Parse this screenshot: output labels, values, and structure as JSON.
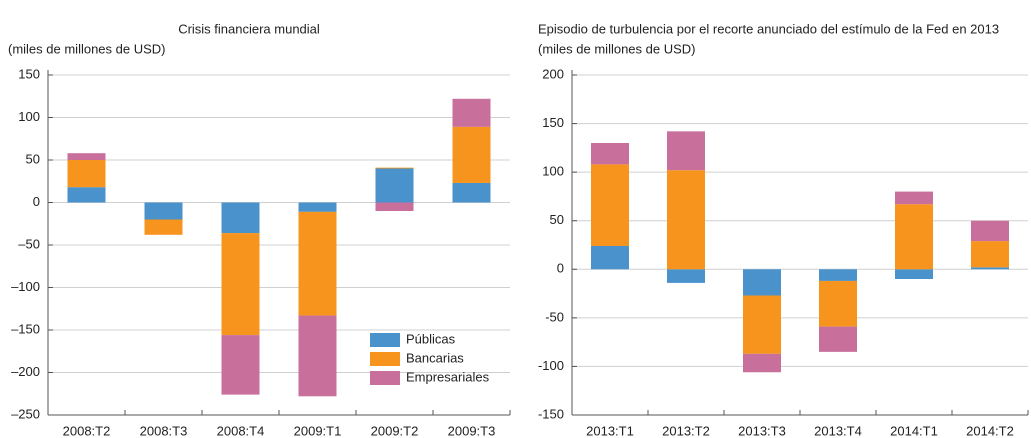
{
  "chart_data": [
    {
      "type": "bar",
      "stacked": true,
      "title": "Crisis financiera mundial",
      "y_label": "(miles de millones de USD)",
      "categories": [
        "2008:T2",
        "2008:T3",
        "2008:T4",
        "2009:T1",
        "2009:T2",
        "2009:T3"
      ],
      "series": [
        {
          "name": "Públicas",
          "color": "#4a92cc",
          "values": [
            18,
            -20,
            -36,
            -11,
            40,
            23
          ]
        },
        {
          "name": "Bancarias",
          "color": "#f7941d",
          "values": [
            32,
            -18,
            -120,
            -122,
            1,
            66
          ]
        },
        {
          "name": "Empresariales",
          "color": "#c96f9c",
          "values": [
            8,
            0,
            -70,
            -95,
            -10,
            33
          ]
        }
      ],
      "ylim": [
        -250,
        150
      ],
      "yticks": [
        {
          "value": -250,
          "label": "–250"
        },
        {
          "value": -200,
          "label": "–200"
        },
        {
          "value": -150,
          "label": "–150"
        },
        {
          "value": -100,
          "label": "–100"
        },
        {
          "value": -50,
          "label": "–50"
        },
        0,
        50,
        100,
        150
      ],
      "grid": true,
      "legend": "lower right"
    },
    {
      "type": "bar",
      "stacked": true,
      "title": "Episodio de turbulencia por el recorte anunciado del estímulo de la Fed en 2013",
      "y_label": "(miles de millones de USD)",
      "categories": [
        "2013:T1",
        "2013:T2",
        "2013:T3",
        "2013:T4",
        "2014:T1",
        "2014:T2"
      ],
      "series": [
        {
          "color": "#4a92cc",
          "values": [
            24,
            -14,
            -27,
            -12,
            -10,
            2
          ]
        },
        {
          "color": "#f7941d",
          "values": [
            84,
            102,
            -60,
            -47,
            67,
            27
          ]
        },
        {
          "color": "#c96f9c",
          "values": [
            22,
            40,
            -19,
            -26,
            13,
            21
          ]
        }
      ],
      "ylim": [
        -150,
        200
      ],
      "yticks": [
        -150,
        -100,
        -50,
        0,
        50,
        100,
        150,
        200
      ],
      "grid": true
    }
  ]
}
